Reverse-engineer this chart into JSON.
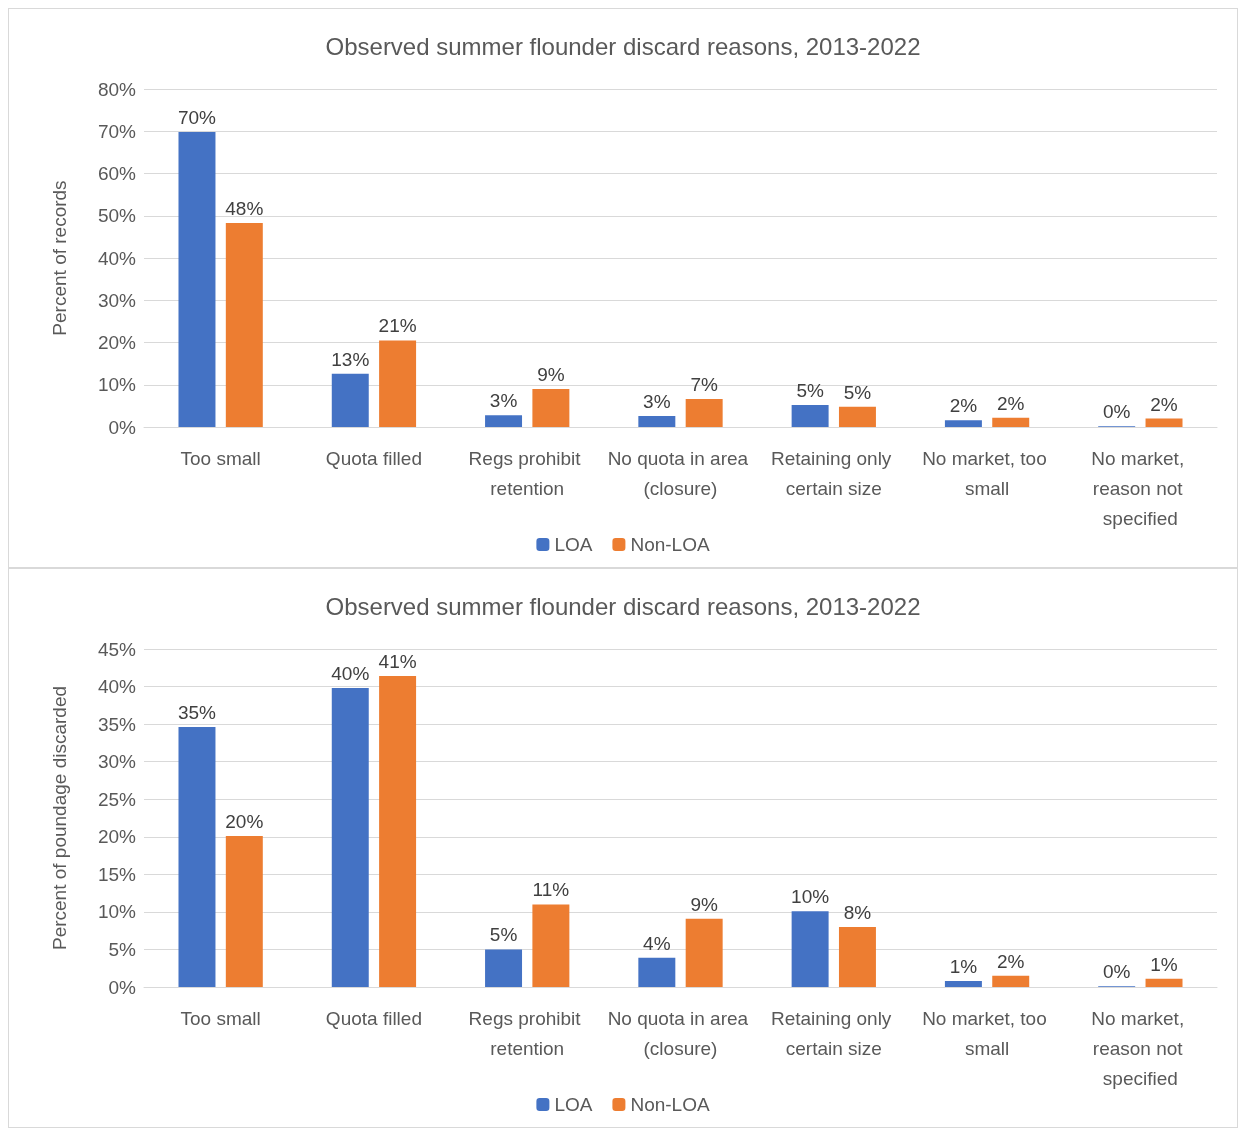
{
  "chart_data": [
    {
      "type": "bar",
      "title": "Observed summer flounder discard reasons, 2013-2022",
      "ylabel": "Percent of records",
      "categories": [
        "Too small",
        "Quota filled",
        "Regs prohibit retention",
        "No quota in area (closure)",
        "Retaining only certain size",
        "No market, too small",
        "No market, reason not specified"
      ],
      "series": [
        {
          "name": "LOA",
          "color": "#4472c4",
          "values": [
            69.8,
            12.6,
            2.8,
            2.6,
            5.2,
            1.6,
            0.2
          ],
          "value_labels": [
            "70%",
            "13%",
            "3%",
            "3%",
            "5%",
            "2%",
            "0%"
          ]
        },
        {
          "name": "Non-LOA",
          "color": "#ed7d31",
          "values": [
            48.3,
            20.5,
            9.0,
            6.6,
            4.8,
            2.2,
            2.0
          ],
          "value_labels": [
            "48%",
            "21%",
            "9%",
            "7%",
            "5%",
            "2%",
            "2%"
          ]
        }
      ],
      "ylim": [
        0,
        80
      ],
      "yticks": [
        {
          "value": 0,
          "label": "0%"
        },
        {
          "value": 10,
          "label": "10%"
        },
        {
          "value": 20,
          "label": "20%"
        },
        {
          "value": 30,
          "label": "30%"
        },
        {
          "value": 40,
          "label": "40%"
        },
        {
          "value": 50,
          "label": "50%"
        },
        {
          "value": 60,
          "label": "60%"
        },
        {
          "value": 70,
          "label": "70%"
        },
        {
          "value": 80,
          "label": "80%"
        }
      ],
      "grid": "y",
      "legend": "bottom"
    },
    {
      "type": "bar",
      "title": "Observed summer flounder discard reasons, 2013-2022",
      "ylabel": "Percent of poundage discarded",
      "categories": [
        "Too small",
        "Quota filled",
        "Regs prohibit retention",
        "No quota in area (closure)",
        "Retaining only certain size",
        "No market, too small",
        "No market, reason not specified"
      ],
      "series": [
        {
          "name": "LOA",
          "color": "#4472c4",
          "values": [
            34.6,
            39.8,
            5.0,
            3.9,
            10.1,
            0.8,
            0.1
          ],
          "value_labels": [
            "35%",
            "40%",
            "5%",
            "4%",
            "10%",
            "1%",
            "0%"
          ]
        },
        {
          "name": "Non-LOA",
          "color": "#ed7d31",
          "values": [
            20.1,
            41.4,
            11.0,
            9.1,
            8.0,
            1.5,
            1.1
          ],
          "value_labels": [
            "20%",
            "41%",
            "11%",
            "9%",
            "8%",
            "2%",
            "1%"
          ]
        }
      ],
      "ylim": [
        0,
        45
      ],
      "yticks": [
        {
          "value": 0,
          "label": "0%"
        },
        {
          "value": 5,
          "label": "5%"
        },
        {
          "value": 10,
          "label": "10%"
        },
        {
          "value": 15,
          "label": "15%"
        },
        {
          "value": 20,
          "label": "20%"
        },
        {
          "value": 25,
          "label": "25%"
        },
        {
          "value": 30,
          "label": "30%"
        },
        {
          "value": 35,
          "label": "35%"
        },
        {
          "value": 40,
          "label": "40%"
        },
        {
          "value": 45,
          "label": "45%"
        }
      ],
      "grid": "y",
      "legend": "bottom"
    }
  ]
}
